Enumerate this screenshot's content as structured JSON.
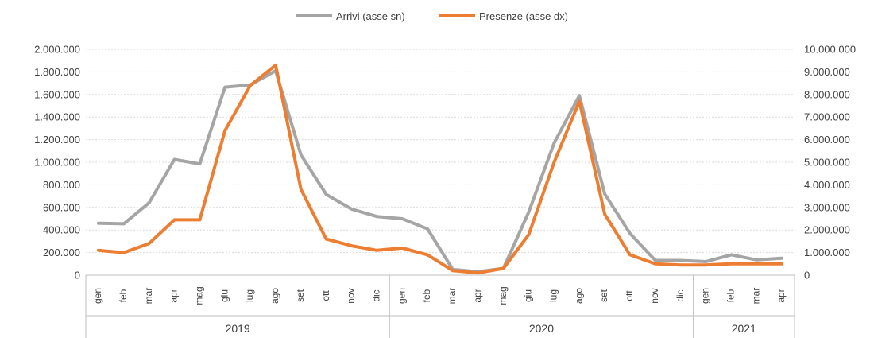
{
  "chart_data": {
    "type": "line",
    "title": "",
    "xlabel": "",
    "ylabel": "",
    "legend_position": "top",
    "grid": true,
    "year_groups": [
      {
        "label": "2019",
        "count": 12
      },
      {
        "label": "2020",
        "count": 12
      },
      {
        "label": "2021",
        "count": 4
      }
    ],
    "categories": [
      "gen",
      "feb",
      "mar",
      "apr",
      "mag",
      "giu",
      "lug",
      "ago",
      "set",
      "ott",
      "nov",
      "dic",
      "gen",
      "feb",
      "mar",
      "apr",
      "mag",
      "giu",
      "lug",
      "ago",
      "set",
      "ott",
      "nov",
      "dic",
      "gen",
      "feb",
      "mar",
      "apr"
    ],
    "y_left": {
      "label": "",
      "min": 0,
      "max": 2000000,
      "step": 200000,
      "ticks": [
        "0",
        "200.000",
        "400.000",
        "600.000",
        "800.000",
        "1.000.000",
        "1.200.000",
        "1.400.000",
        "1.600.000",
        "1.800.000",
        "2.000.000"
      ]
    },
    "y_right": {
      "label": "",
      "min": 0,
      "max": 10000000,
      "step": 1000000,
      "ticks": [
        "0",
        "1.000.000",
        "2.000.000",
        "3.000.000",
        "4.000.000",
        "5.000.000",
        "6.000.000",
        "7.000.000",
        "8.000.000",
        "9.000.000",
        "10.000.000"
      ]
    },
    "series": [
      {
        "name": "Arrivi (asse sn)",
        "axis": "left",
        "color": "#a5a5a5",
        "values": [
          460000,
          455000,
          640000,
          1025000,
          985000,
          1665000,
          1685000,
          1810000,
          1065000,
          715000,
          585000,
          520000,
          500000,
          410000,
          50000,
          30000,
          60000,
          560000,
          1170000,
          1590000,
          720000,
          370000,
          130000,
          130000,
          120000,
          180000,
          135000,
          150000
        ]
      },
      {
        "name": "Presenze (asse dx)",
        "axis": "right",
        "color": "#ed7d31",
        "values": [
          1100000,
          1000000,
          1400000,
          2450000,
          2450000,
          6400000,
          8400000,
          9300000,
          3800000,
          1600000,
          1300000,
          1100000,
          1200000,
          900000,
          200000,
          100000,
          300000,
          1800000,
          5000000,
          7700000,
          2700000,
          900000,
          500000,
          450000,
          450000,
          500000,
          500000,
          500000
        ]
      }
    ]
  }
}
